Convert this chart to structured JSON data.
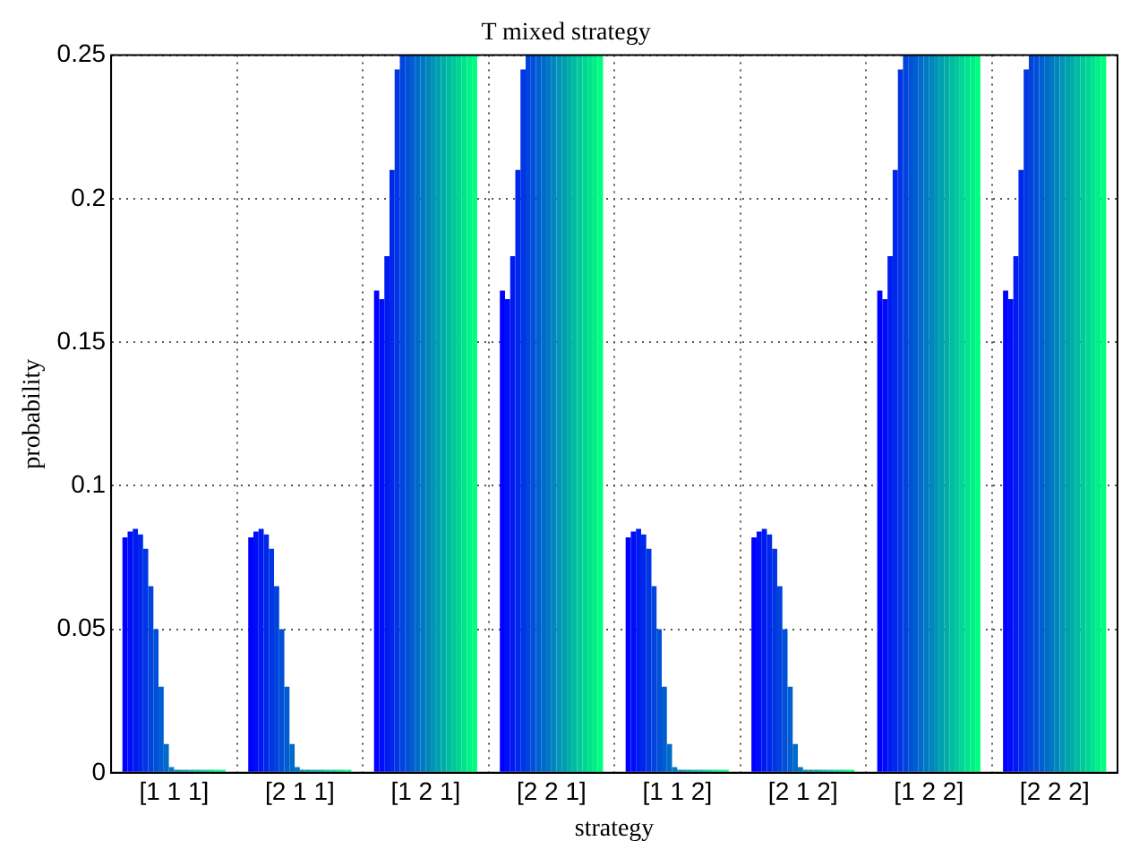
{
  "chart_data": {
    "type": "bar",
    "title": "T mixed strategy",
    "xlabel": "strategy",
    "ylabel": "probability",
    "categories": [
      "[1 1 1]",
      "[2 1 1]",
      "[1 2 1]",
      "[2 2 1]",
      "[1 1 2]",
      "[2 1 2]",
      "[1 2 2]",
      "[2 2 2]"
    ],
    "ylim": [
      0,
      0.25
    ],
    "yticks": [
      0,
      0.05,
      0.1,
      0.15,
      0.2,
      0.25
    ],
    "grid": true,
    "legend": false,
    "series": [
      {
        "color": "#0000ff",
        "values": [
          0.082,
          0.082,
          0.168,
          0.168,
          0.082,
          0.082,
          0.168,
          0.168
        ]
      },
      {
        "color": "#000df8",
        "values": [
          0.084,
          0.084,
          0.165,
          0.165,
          0.084,
          0.084,
          0.165,
          0.165
        ]
      },
      {
        "color": "#001bf2",
        "values": [
          0.085,
          0.085,
          0.18,
          0.18,
          0.085,
          0.085,
          0.18,
          0.18
        ]
      },
      {
        "color": "#0028eb",
        "values": [
          0.083,
          0.083,
          0.21,
          0.21,
          0.083,
          0.083,
          0.21,
          0.21
        ]
      },
      {
        "color": "#0036e4",
        "values": [
          0.078,
          0.078,
          0.245,
          0.245,
          0.078,
          0.078,
          0.245,
          0.245
        ]
      },
      {
        "color": "#0043dd",
        "values": [
          0.065,
          0.065,
          0.25,
          0.25,
          0.065,
          0.065,
          0.25,
          0.25
        ]
      },
      {
        "color": "#0051d7",
        "values": [
          0.05,
          0.05,
          0.25,
          0.25,
          0.05,
          0.05,
          0.25,
          0.25
        ]
      },
      {
        "color": "#005ed0",
        "values": [
          0.03,
          0.03,
          0.25,
          0.25,
          0.03,
          0.03,
          0.25,
          0.25
        ]
      },
      {
        "color": "#006bc9",
        "values": [
          0.01,
          0.01,
          0.25,
          0.25,
          0.01,
          0.01,
          0.25,
          0.25
        ]
      },
      {
        "color": "#0079c3",
        "values": [
          0.002,
          0.002,
          0.25,
          0.25,
          0.002,
          0.002,
          0.25,
          0.25
        ]
      },
      {
        "color": "#0086bc",
        "values": [
          0.001,
          0.001,
          0.25,
          0.25,
          0.001,
          0.001,
          0.25,
          0.25
        ]
      },
      {
        "color": "#0094b5",
        "values": [
          0.001,
          0.001,
          0.25,
          0.25,
          0.001,
          0.001,
          0.25,
          0.25
        ]
      },
      {
        "color": "#00a1ae",
        "values": [
          0.001,
          0.001,
          0.25,
          0.25,
          0.001,
          0.001,
          0.25,
          0.25
        ]
      },
      {
        "color": "#00aea8",
        "values": [
          0.001,
          0.001,
          0.25,
          0.25,
          0.001,
          0.001,
          0.25,
          0.25
        ]
      },
      {
        "color": "#00bca1",
        "values": [
          0.001,
          0.001,
          0.25,
          0.25,
          0.001,
          0.001,
          0.25,
          0.25
        ]
      },
      {
        "color": "#00c99a",
        "values": [
          0.001,
          0.001,
          0.25,
          0.25,
          0.001,
          0.001,
          0.25,
          0.25
        ]
      },
      {
        "color": "#00d794",
        "values": [
          0.001,
          0.001,
          0.25,
          0.25,
          0.001,
          0.001,
          0.25,
          0.25
        ]
      },
      {
        "color": "#00e48d",
        "values": [
          0.001,
          0.001,
          0.25,
          0.25,
          0.001,
          0.001,
          0.25,
          0.25
        ]
      },
      {
        "color": "#00f286",
        "values": [
          0.001,
          0.001,
          0.25,
          0.25,
          0.001,
          0.001,
          0.25,
          0.25
        ]
      },
      {
        "color": "#00ff80",
        "values": [
          0.001,
          0.001,
          0.25,
          0.25,
          0.001,
          0.001,
          0.25,
          0.25
        ]
      }
    ]
  }
}
